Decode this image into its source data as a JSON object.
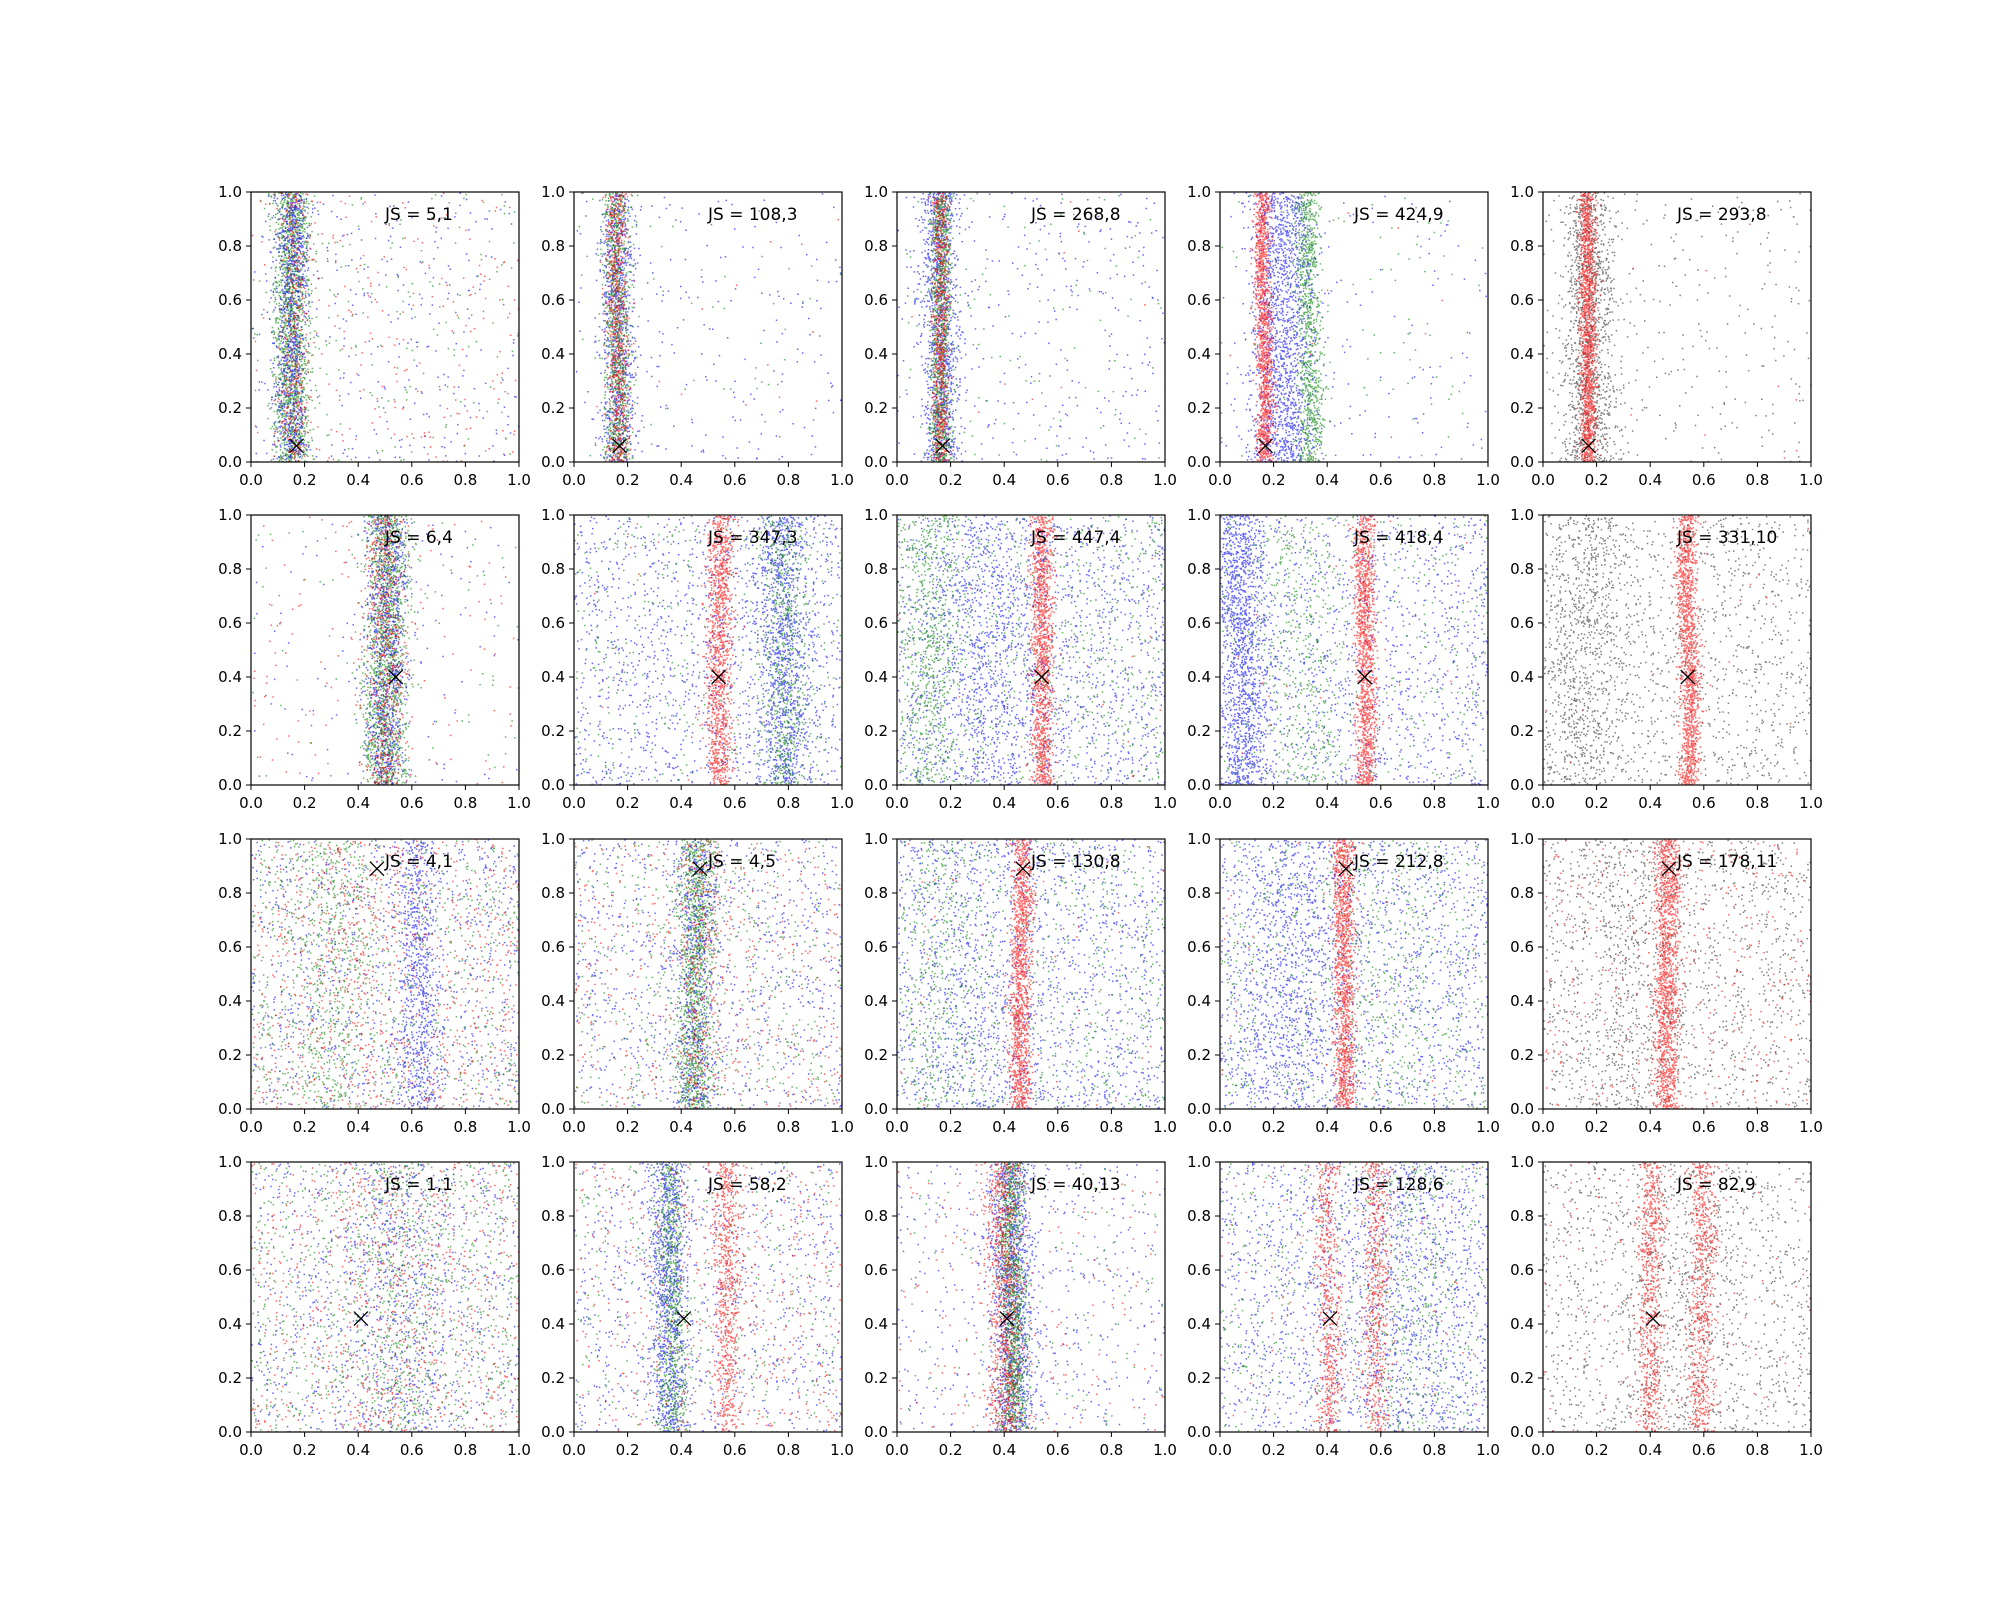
{
  "chart_data": {
    "type": "scatter",
    "layout": {
      "rows": 4,
      "cols": 5
    },
    "xlim": [
      0,
      1
    ],
    "ylim": [
      0,
      1
    ],
    "ticks": [
      0.0,
      0.2,
      0.4,
      0.6,
      0.8,
      1.0
    ],
    "tick_labels": [
      "0.0",
      "0.2",
      "0.4",
      "0.6",
      "0.8",
      "1.0"
    ],
    "grid": false,
    "colors": {
      "red": "#ff0000",
      "green": "#008000",
      "blue": "#0000ff",
      "black": "#000000",
      "marker": "#000000"
    },
    "rows": [
      {
        "marker": [
          0.17,
          0.06
        ],
        "panels": [
          {
            "label": "JS = 5,1",
            "clusters": [
              {
                "color": "green",
                "band": [
                  0.15,
                  0.035
                ],
                "n": 1700,
                "bg": 200
              },
              {
                "color": "blue",
                "band": [
                  0.15,
                  0.03
                ],
                "n": 900,
                "bg": 300
              },
              {
                "color": "red",
                "band": [
                  0.16,
                  0.03
                ],
                "n": 400,
                "bg": 250
              }
            ]
          },
          {
            "label": "JS = 108,3",
            "clusters": [
              {
                "color": "blue",
                "band": [
                  0.16,
                  0.03
                ],
                "n": 900,
                "bg": 220
              },
              {
                "color": "green",
                "band": [
                  0.16,
                  0.025
                ],
                "n": 1000,
                "bg": 60
              },
              {
                "color": "red",
                "band": [
                  0.16,
                  0.02
                ],
                "n": 700,
                "bg": 15
              }
            ]
          },
          {
            "label": "JS = 268,8",
            "clusters": [
              {
                "color": "blue",
                "band": [
                  0.16,
                  0.035
                ],
                "n": 1100,
                "bg": 350
              },
              {
                "color": "green",
                "band": [
                  0.16,
                  0.02
                ],
                "n": 1100,
                "bg": 120
              },
              {
                "color": "red",
                "band": [
                  0.16,
                  0.015
                ],
                "n": 700,
                "bg": 10
              }
            ]
          },
          {
            "label": "JS = 424,9",
            "clusters": [
              {
                "color": "blue",
                "band": [
                  0.23,
                  0.06
                ],
                "n": 1600,
                "bg": 150
              },
              {
                "color": "green",
                "band": [
                  0.33,
                  0.025
                ],
                "n": 900,
                "bg": 100
              },
              {
                "color": "red",
                "band": [
                  0.16,
                  0.015
                ],
                "n": 1400,
                "bg": 10
              }
            ]
          },
          {
            "label": "JS = 293,8",
            "clusters": [
              {
                "color": "black",
                "band": [
                  0.17,
                  0.05
                ],
                "n": 1300,
                "bg": 300
              },
              {
                "color": "red",
                "band": [
                  0.165,
                  0.015
                ],
                "n": 1500,
                "bg": 10
              }
            ]
          }
        ]
      },
      {
        "marker": [
          0.54,
          0.4
        ],
        "panels": [
          {
            "label": "JS = 6,4",
            "clusters": [
              {
                "color": "green",
                "band": [
                  0.5,
                  0.04
                ],
                "n": 1600,
                "bg": 80
              },
              {
                "color": "blue",
                "band": [
                  0.5,
                  0.04
                ],
                "n": 900,
                "bg": 120
              },
              {
                "color": "red",
                "band": [
                  0.5,
                  0.035
                ],
                "n": 600,
                "bg": 150
              }
            ]
          },
          {
            "label": "JS = 347,3",
            "clusters": [
              {
                "color": "blue",
                "band": [
                  0.78,
                  0.05
                ],
                "n": 1000,
                "bg": 1300
              },
              {
                "color": "green",
                "band": [
                  0.78,
                  0.04
                ],
                "n": 600,
                "bg": 400
              },
              {
                "color": "red",
                "band": [
                  0.54,
                  0.025
                ],
                "n": 1200,
                "bg": 20
              }
            ]
          },
          {
            "label": "JS = 447,4",
            "clusters": [
              {
                "color": "blue",
                "band": [
                  0.35,
                  0.1
                ],
                "n": 600,
                "bg": 1600
              },
              {
                "color": "green",
                "band": [
                  0.12,
                  0.06
                ],
                "n": 600,
                "bg": 800
              },
              {
                "color": "red",
                "band": [
                  0.54,
                  0.02
                ],
                "n": 1300,
                "bg": 20
              }
            ]
          },
          {
            "label": "JS = 418,4",
            "clusters": [
              {
                "color": "blue",
                "band": [
                  0.08,
                  0.05
                ],
                "n": 1300,
                "bg": 1300
              },
              {
                "color": "green",
                "band": [
                  0.3,
                  0.08
                ],
                "n": 400,
                "bg": 400
              },
              {
                "color": "red",
                "band": [
                  0.54,
                  0.02
                ],
                "n": 1300,
                "bg": 20
              }
            ]
          },
          {
            "label": "JS = 331,10",
            "clusters": [
              {
                "color": "black",
                "band": [
                  0.15,
                  0.08
                ],
                "n": 700,
                "bg": 1300
              },
              {
                "color": "red",
                "band": [
                  0.54,
                  0.02
                ],
                "n": 1400,
                "bg": 20
              }
            ]
          }
        ]
      },
      {
        "marker": [
          0.47,
          0.89
        ],
        "panels": [
          {
            "label": "JS = 4,1",
            "clusters": [
              {
                "color": "blue",
                "band": [
                  0.62,
                  0.04
                ],
                "n": 700,
                "bg": 1000
              },
              {
                "color": "green",
                "band": [
                  0.3,
                  0.08
                ],
                "n": 500,
                "bg": 800
              },
              {
                "color": "red",
                "band": [
                  0.4,
                  0.1
                ],
                "n": 200,
                "bg": 800
              }
            ]
          },
          {
            "label": "JS = 4,5",
            "clusters": [
              {
                "color": "green",
                "band": [
                  0.45,
                  0.035
                ],
                "n": 1300,
                "bg": 500
              },
              {
                "color": "blue",
                "band": [
                  0.45,
                  0.04
                ],
                "n": 500,
                "bg": 900
              },
              {
                "color": "red",
                "band": [
                  0.47,
                  0.04
                ],
                "n": 300,
                "bg": 500
              }
            ]
          },
          {
            "label": "JS = 130,8",
            "clusters": [
              {
                "color": "blue",
                "band": [
                  0.3,
                  0.15
                ],
                "n": 300,
                "bg": 1500
              },
              {
                "color": "green",
                "band": [
                  0.15,
                  0.08
                ],
                "n": 300,
                "bg": 700
              },
              {
                "color": "red",
                "band": [
                  0.46,
                  0.02
                ],
                "n": 1300,
                "bg": 50
              }
            ]
          },
          {
            "label": "JS = 212,8",
            "clusters": [
              {
                "color": "blue",
                "band": [
                  0.25,
                  0.1
                ],
                "n": 700,
                "bg": 1500
              },
              {
                "color": "green",
                "band": [
                  0.6,
                  0.1
                ],
                "n": 200,
                "bg": 700
              },
              {
                "color": "red",
                "band": [
                  0.46,
                  0.02
                ],
                "n": 1300,
                "bg": 50
              }
            ]
          },
          {
            "label": "JS = 178,11",
            "clusters": [
              {
                "color": "black",
                "band": [
                  0.3,
                  0.1
                ],
                "n": 400,
                "bg": 1300
              },
              {
                "color": "red",
                "band": [
                  0.46,
                  0.025
                ],
                "n": 1400,
                "bg": 400
              }
            ]
          }
        ]
      },
      {
        "marker": [
          0.41,
          0.42
        ],
        "panels": [
          {
            "label": "JS = 1,1",
            "clusters": [
              {
                "color": "blue",
                "band": [
                  0.55,
                  0.1
                ],
                "n": 400,
                "bg": 900
              },
              {
                "color": "green",
                "band": [
                  0.55,
                  0.08
                ],
                "n": 400,
                "bg": 900
              },
              {
                "color": "red",
                "band": [
                  0.5,
                  0.1
                ],
                "n": 200,
                "bg": 700
              }
            ]
          },
          {
            "label": "JS = 58,2",
            "clusters": [
              {
                "color": "blue",
                "band": [
                  0.35,
                  0.035
                ],
                "n": 1000,
                "bg": 800
              },
              {
                "color": "green",
                "band": [
                  0.36,
                  0.03
                ],
                "n": 700,
                "bg": 400
              },
              {
                "color": "red",
                "band": [
                  0.57,
                  0.025
                ],
                "n": 700,
                "bg": 500
              }
            ]
          },
          {
            "label": "JS = 40,13",
            "clusters": [
              {
                "color": "blue",
                "band": [
                  0.43,
                  0.04
                ],
                "n": 1200,
                "bg": 500
              },
              {
                "color": "green",
                "band": [
                  0.43,
                  0.025
                ],
                "n": 1200,
                "bg": 150
              },
              {
                "color": "red",
                "band": [
                  0.4,
                  0.035
                ],
                "n": 900,
                "bg": 200
              }
            ]
          },
          {
            "label": "JS = 128,6",
            "clusters": [
              {
                "color": "blue",
                "band": [
                  0.7,
                  0.15
                ],
                "n": 500,
                "bg": 1400
              },
              {
                "color": "green",
                "band": [
                  0.7,
                  0.1
                ],
                "n": 300,
                "bg": 500
              },
              {
                "color": "red",
                "band": [
                  0.4,
                  0.025
                ],
                "n": 600,
                "bg": 100
              },
              {
                "color": "red",
                "band": [
                  0.58,
                  0.025
                ],
                "n": 600,
                "bg": 0
              }
            ]
          },
          {
            "label": "JS = 82,9",
            "clusters": [
              {
                "color": "black",
                "band": [
                  0.5,
                  0.15
                ],
                "n": 400,
                "bg": 1200
              },
              {
                "color": "red",
                "band": [
                  0.4,
                  0.025
                ],
                "n": 700,
                "bg": 150
              },
              {
                "color": "red",
                "band": [
                  0.59,
                  0.025
                ],
                "n": 700,
                "bg": 0
              }
            ]
          }
        ]
      }
    ]
  }
}
